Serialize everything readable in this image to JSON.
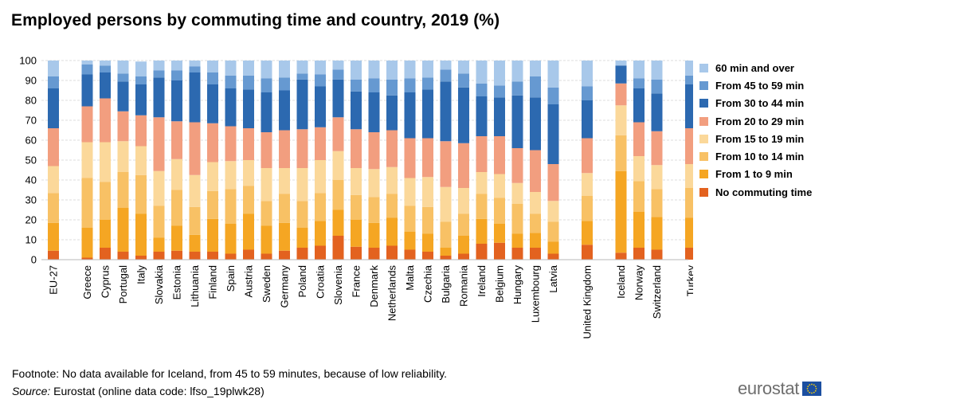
{
  "title": "Employed persons by commuting time and country, 2019 (%)",
  "footnote": "Footnote: No data available for Iceland, from 45 to 59 minutes, because of low reliability.",
  "source_label": "Source:",
  "source_text": " Eurostat (online data code: lfso_19plwk28)",
  "logo_text": "eurostat",
  "chart_data": {
    "type": "bar",
    "stacked": true,
    "title": "Employed persons by commuting time and country, 2019 (%)",
    "ylim": [
      0,
      100
    ],
    "yticks": [
      0,
      10,
      20,
      30,
      40,
      50,
      60,
      70,
      80,
      90,
      100
    ],
    "grid": true,
    "legend_position": "right",
    "categories": [
      "EU-27",
      "Greece",
      "Cyprus",
      "Portugal",
      "Italy",
      "Slovakia",
      "Estonia",
      "Lithuania",
      "Finland",
      "Spain",
      "Austria",
      "Sweden",
      "Germany",
      "Poland",
      "Croatia",
      "Slovenia",
      "France",
      "Denmark",
      "Netherlands",
      "Malta",
      "Czechia",
      "Bulgaria",
      "Romania",
      "Ireland",
      "Belgium",
      "Hungary",
      "Luxembourg",
      "Latvia",
      "United Kingdom",
      "Iceland",
      "Norway",
      "Switzerland",
      "Turkey"
    ],
    "group_starts": [
      1,
      28,
      29,
      32
    ],
    "series": [
      {
        "name": "No commuting time",
        "color": "#e3621f",
        "values": [
          4.5,
          1,
          6,
          4,
          2,
          4,
          4.5,
          4,
          4,
          3,
          5,
          3,
          4.5,
          6,
          7,
          12,
          6.5,
          6,
          7,
          5,
          4,
          2,
          3,
          8,
          8.5,
          6,
          6,
          3,
          7.5,
          3.5,
          6,
          5,
          6
        ]
      },
      {
        "name": "From 1 to 9 min",
        "color": "#f5a623",
        "values": [
          14,
          15,
          14,
          22,
          21,
          7,
          12.5,
          8.5,
          16.5,
          15,
          18,
          14,
          14,
          10,
          12.5,
          13,
          13.5,
          12.5,
          14,
          9,
          9,
          4,
          9,
          12.5,
          9.5,
          7,
          7.5,
          6,
          12,
          41,
          18,
          16.5,
          15
        ]
      },
      {
        "name": "From 10 to 14 min",
        "color": "#f8c165",
        "values": [
          15,
          25,
          19,
          18,
          19.5,
          16,
          18,
          14,
          14,
          17.5,
          14,
          12.5,
          14.5,
          13.5,
          14,
          15,
          12.5,
          13,
          12,
          13,
          13.5,
          13,
          11,
          12.5,
          13,
          15,
          9.5,
          10,
          12.5,
          18,
          15.5,
          14,
          15
        ]
      },
      {
        "name": "From 15 to 19 min",
        "color": "#fbd89a",
        "values": [
          13.5,
          18,
          20,
          15.5,
          14.5,
          17.5,
          15.5,
          16,
          14.5,
          14,
          13,
          16.5,
          13,
          16.5,
          16.5,
          14.5,
          13.5,
          14,
          13.5,
          14,
          15,
          17.5,
          13,
          11,
          12,
          10.5,
          11,
          10.5,
          11.5,
          15,
          12.5,
          12,
          12
        ]
      },
      {
        "name": "From 20 to 29 min",
        "color": "#f29e7f",
        "values": [
          19,
          18,
          22,
          15,
          15.5,
          27,
          19,
          26.5,
          19.5,
          17.5,
          16,
          18,
          19,
          19.5,
          16.5,
          17,
          19.5,
          18.5,
          18.5,
          20,
          19.5,
          23,
          22.5,
          18,
          19,
          17.5,
          21,
          18.5,
          17.5,
          11,
          17,
          17,
          18
        ]
      },
      {
        "name": "From 30 to 44 min",
        "color": "#2c69b0",
        "values": [
          20,
          16,
          13,
          15,
          15.5,
          20,
          20.5,
          25,
          19.5,
          19,
          19.5,
          20,
          20,
          25,
          20.5,
          19,
          19,
          20,
          17.5,
          23,
          24.5,
          30,
          28,
          20,
          19.5,
          26.5,
          26.5,
          30,
          19,
          9,
          17,
          19,
          22
        ]
      },
      {
        "name": "From 45 to 59 min",
        "color": "#6699d1",
        "values": [
          6,
          5,
          3.5,
          4,
          4,
          3.5,
          5,
          3,
          6,
          6.5,
          7,
          7,
          6.5,
          3,
          6,
          5,
          6,
          7,
          8,
          7,
          6,
          6,
          7,
          6.5,
          6,
          7,
          10.5,
          8.5,
          7,
          0,
          5,
          7,
          4.5
        ]
      },
      {
        "name": "60 min and over",
        "color": "#a8c8ea",
        "values": [
          8,
          2,
          2.5,
          6.5,
          7.5,
          5,
          5,
          3,
          6,
          7.5,
          7.5,
          9,
          8.5,
          6.5,
          7,
          4.5,
          9.5,
          9,
          9.5,
          9,
          8.5,
          4.5,
          6.5,
          11.5,
          12.5,
          10.5,
          8,
          13.5,
          13,
          2.5,
          9,
          9.5,
          7.5
        ]
      }
    ]
  }
}
